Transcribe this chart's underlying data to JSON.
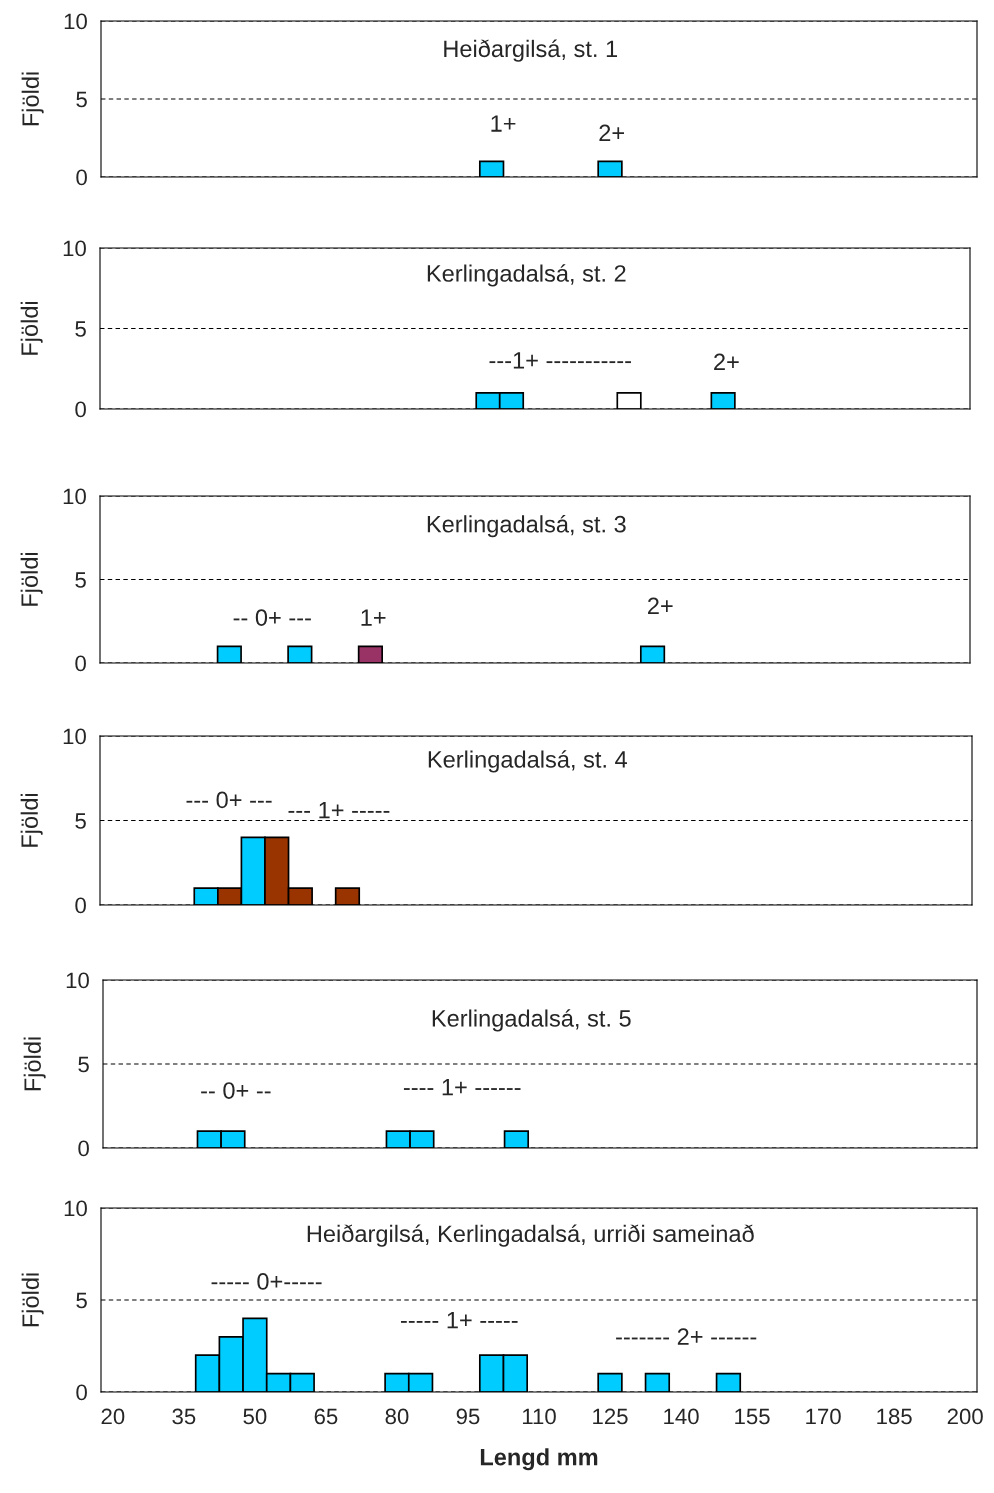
{
  "chart_data": [
    {
      "type": "bar",
      "title": "Heiðargilsá, st. 1",
      "ylabel": "Fjöldi",
      "categories": [
        null,
        null,
        null,
        null,
        null,
        null,
        null,
        null,
        null,
        null,
        null,
        null,
        null,
        null,
        null,
        null,
        null,
        null,
        null,
        null,
        null,
        null,
        null,
        null,
        null,
        null,
        null,
        null,
        null,
        null,
        null,
        null,
        null,
        null,
        null,
        null,
        null
      ],
      "values": [
        null,
        null,
        null,
        null,
        null,
        null,
        null,
        null,
        null,
        null,
        null,
        null,
        null,
        null,
        null,
        null,
        1,
        null,
        null,
        null,
        null,
        1,
        null,
        null,
        null,
        null,
        null,
        null,
        null,
        null,
        null,
        null,
        null,
        null,
        null,
        null,
        null
      ],
      "colors": [
        null,
        null,
        null,
        null,
        null,
        null,
        null,
        null,
        null,
        null,
        null,
        null,
        null,
        null,
        null,
        null,
        "#00ccff",
        null,
        null,
        null,
        null,
        "#00ccff",
        null,
        null,
        null,
        null,
        null,
        null,
        null,
        null,
        null,
        null,
        null,
        null,
        null,
        null,
        null
      ],
      "annotations": [
        "1+",
        "2+"
      ],
      "ylim": [
        0,
        10
      ],
      "yticks": [
        0,
        5,
        10
      ],
      "grid": "y",
      "tick_labels": "y"
    },
    {
      "type": "bar",
      "title": "Kerlingadalsá, st. 2",
      "ylabel": "Fjöldi",
      "categories": [
        null,
        null,
        null,
        null,
        null,
        null,
        null,
        null,
        null,
        null,
        null,
        null,
        null,
        null,
        null,
        null,
        null,
        null,
        null,
        null,
        null,
        null,
        null,
        null,
        null,
        null,
        null,
        null,
        null,
        null,
        null,
        null,
        null,
        null,
        null,
        null,
        null
      ],
      "values": [
        null,
        null,
        null,
        null,
        null,
        null,
        null,
        null,
        null,
        null,
        null,
        null,
        null,
        null,
        null,
        null,
        1,
        1,
        null,
        null,
        null,
        null,
        1,
        null,
        null,
        null,
        1,
        null,
        null,
        null,
        null,
        null,
        null,
        null,
        null,
        null,
        null
      ],
      "colors": [
        null,
        null,
        null,
        null,
        null,
        null,
        null,
        null,
        null,
        null,
        null,
        null,
        null,
        null,
        null,
        null,
        "#00ccff",
        "#00ccff",
        null,
        null,
        null,
        null,
        "#ffffff",
        null,
        null,
        null,
        "#00ccff",
        null,
        null,
        null,
        null,
        null,
        null,
        null,
        null,
        null,
        null
      ],
      "annotations": [
        "---1+ -----------",
        "2+"
      ],
      "ylim": [
        0,
        10
      ],
      "yticks": [
        0,
        5,
        10
      ],
      "grid": "y",
      "tick_labels": "y"
    },
    {
      "type": "bar",
      "title": "Kerlingadalsá, st. 3",
      "ylabel": "Fjöldi",
      "categories": [
        null,
        null,
        null,
        null,
        null,
        null,
        null,
        null,
        null,
        null,
        null,
        null,
        null,
        null,
        null,
        null,
        null,
        null,
        null,
        null,
        null,
        null,
        null,
        null,
        null,
        null,
        null,
        null,
        null,
        null,
        null,
        null,
        null,
        null,
        null,
        null,
        null
      ],
      "values": [
        null,
        null,
        null,
        null,
        null,
        1,
        null,
        null,
        1,
        null,
        null,
        1,
        null,
        null,
        null,
        null,
        null,
        null,
        null,
        null,
        null,
        null,
        null,
        1,
        null,
        null,
        null,
        null,
        null,
        null,
        null,
        null,
        null,
        null,
        null,
        null,
        null
      ],
      "colors": [
        null,
        null,
        null,
        null,
        null,
        "#00ccff",
        null,
        null,
        "#00ccff",
        null,
        null,
        "#993366",
        null,
        null,
        null,
        null,
        null,
        null,
        null,
        null,
        null,
        null,
        null,
        "#00ccff",
        null,
        null,
        null,
        null,
        null,
        null,
        null,
        null,
        null,
        null,
        null,
        null,
        null
      ],
      "annotations": [
        "-- 0+ ---",
        "1+",
        "2+"
      ],
      "ylim": [
        0,
        10
      ],
      "yticks": [
        0,
        5,
        10
      ],
      "grid": "y",
      "tick_labels": "y"
    },
    {
      "type": "bar",
      "title": "Kerlingadalsá, st. 4",
      "ylabel": "Fjöldi",
      "categories": [
        null,
        null,
        null,
        null,
        null,
        null,
        null,
        null,
        null,
        null,
        null,
        null,
        null,
        null,
        null,
        null,
        null,
        null,
        null,
        null,
        null,
        null,
        null,
        null,
        null,
        null,
        null,
        null,
        null,
        null,
        null,
        null,
        null,
        null,
        null,
        null,
        null
      ],
      "values": [
        null,
        null,
        null,
        null,
        1,
        1,
        4,
        4,
        1,
        null,
        1,
        null,
        null,
        null,
        null,
        null,
        null,
        null,
        null,
        null,
        null,
        null,
        null,
        null,
        null,
        null,
        null,
        null,
        null,
        null,
        null,
        null,
        null,
        null,
        null,
        null,
        null
      ],
      "colors": [
        null,
        null,
        null,
        null,
        "#00ccff",
        "#993300",
        "#00ccff",
        "#993300",
        "#993300",
        null,
        "#993300",
        null,
        null,
        null,
        null,
        null,
        null,
        null,
        null,
        null,
        null,
        null,
        null,
        null,
        null,
        null,
        null,
        null,
        null,
        null,
        null,
        null,
        null,
        null,
        null,
        null,
        null
      ],
      "annotations": [
        "--- 0+ ---",
        "--- 1+ -----"
      ],
      "ylim": [
        0,
        10
      ],
      "yticks": [
        0,
        5,
        10
      ],
      "grid": "y",
      "tick_labels": "y"
    },
    {
      "type": "bar",
      "title": "Kerlingadalsá, st. 5",
      "ylabel": "Fjöldi",
      "categories": [
        null,
        null,
        null,
        null,
        null,
        null,
        null,
        null,
        null,
        null,
        null,
        null,
        null,
        null,
        null,
        null,
        null,
        null,
        null,
        null,
        null,
        null,
        null,
        null,
        null,
        null,
        null,
        null,
        null,
        null,
        null,
        null,
        null,
        null,
        null,
        null,
        null
      ],
      "values": [
        null,
        null,
        null,
        null,
        1,
        1,
        null,
        null,
        null,
        null,
        null,
        null,
        1,
        1,
        null,
        null,
        null,
        1,
        null,
        null,
        null,
        null,
        null,
        null,
        null,
        null,
        null,
        null,
        null,
        null,
        null,
        null,
        null,
        null,
        null,
        null,
        null
      ],
      "colors": [
        null,
        null,
        null,
        null,
        "#00ccff",
        "#00ccff",
        null,
        null,
        null,
        null,
        null,
        null,
        "#00ccff",
        "#00ccff",
        null,
        null,
        null,
        "#00ccff",
        null,
        null,
        null,
        null,
        null,
        null,
        null,
        null,
        null,
        null,
        null,
        null,
        null,
        null,
        null,
        null,
        null,
        null,
        null
      ],
      "annotations": [
        "-- 0+ --",
        "---- 1+ ------"
      ],
      "ylim": [
        0,
        10
      ],
      "yticks": [
        0,
        5,
        10
      ],
      "grid": "y",
      "tick_labels": "y"
    },
    {
      "type": "bar",
      "title": "Heiðargilsá, Kerlingadalsá, urriði sameinað",
      "ylabel": "Fjöldi",
      "xlabel": "Lengd mm",
      "categories": [
        "20",
        null,
        null,
        "35",
        null,
        null,
        "50",
        null,
        null,
        "65",
        null,
        null,
        "80",
        null,
        null,
        "95",
        null,
        null,
        "110",
        null,
        null,
        "125",
        null,
        null,
        "140",
        null,
        null,
        "155",
        null,
        null,
        "170",
        null,
        null,
        "185",
        null,
        null,
        "200"
      ],
      "values": [
        null,
        null,
        null,
        null,
        2,
        3,
        4,
        1,
        1,
        null,
        null,
        null,
        1,
        1,
        null,
        null,
        2,
        2,
        null,
        null,
        null,
        1,
        null,
        1,
        null,
        null,
        1,
        null,
        null,
        null,
        null,
        null,
        null,
        null,
        null,
        null,
        null
      ],
      "colors": [
        null,
        null,
        null,
        null,
        "#00ccff",
        "#00ccff",
        "#00ccff",
        "#00ccff",
        "#00ccff",
        null,
        null,
        null,
        "#00ccff",
        "#00ccff",
        null,
        null,
        "#00ccff",
        "#00ccff",
        null,
        null,
        null,
        "#00ccff",
        null,
        "#00ccff",
        null,
        null,
        "#00ccff",
        null,
        null,
        null,
        null,
        null,
        null,
        null,
        null,
        null,
        null
      ],
      "annotations": [
        "----- 0+-----",
        "----- 1+ -----",
        "------- 2+ ------"
      ],
      "ylim": [
        0,
        10
      ],
      "yticks": [
        0,
        5,
        10
      ],
      "grid": "y"
    }
  ]
}
